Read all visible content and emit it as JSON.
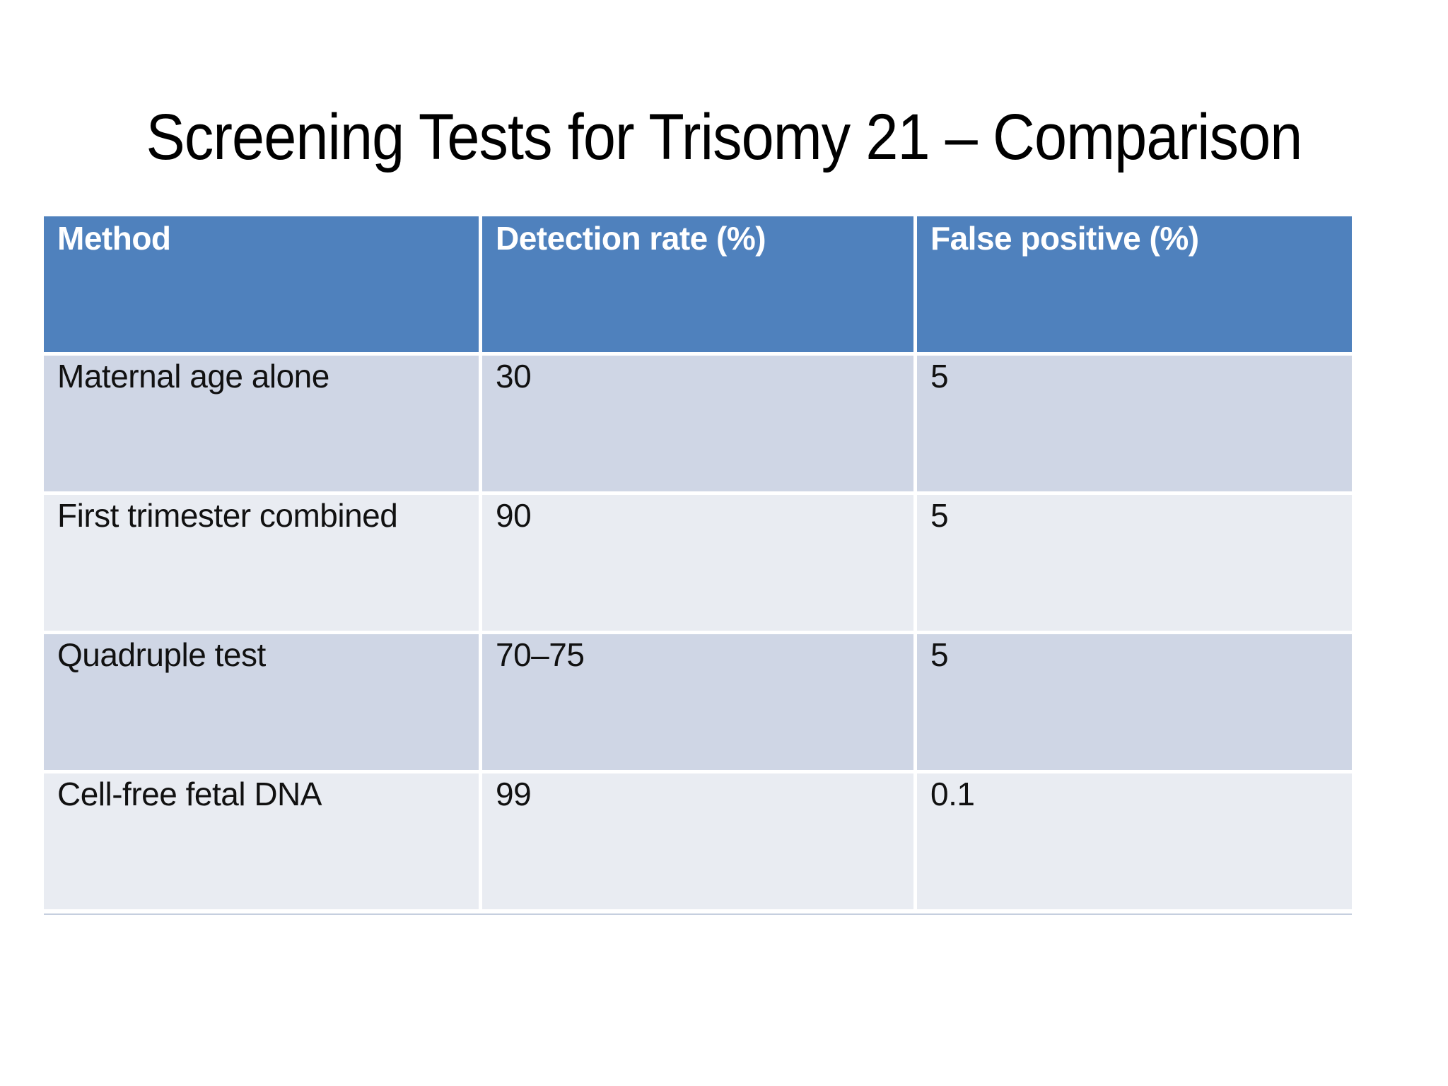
{
  "slide": {
    "title": "Screening Tests for Trisomy 21 – Comparison",
    "background": "#ffffff"
  },
  "table": {
    "columns": [
      "Method",
      "Detection rate (%)",
      "False positive (%)"
    ],
    "rows": [
      [
        "Maternal age alone",
        "30",
        "5"
      ],
      [
        "First trimester combined",
        "90",
        "5"
      ],
      [
        "Quadruple test",
        "70–75",
        "5"
      ],
      [
        "Cell-free fetal DNA",
        "99",
        "0.1"
      ]
    ],
    "colors": {
      "header_bg": "#4f81bd",
      "header_text": "#ffffff",
      "band_dark": "#cfd6e5",
      "band_light": "#e9ecf2",
      "body_text": "#111111",
      "separator": "#ffffff",
      "bottom_line": "#c6cfdf"
    }
  }
}
